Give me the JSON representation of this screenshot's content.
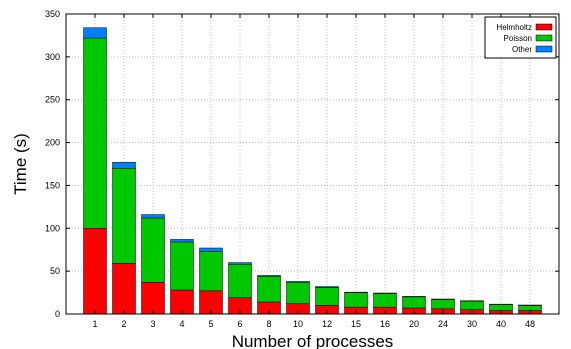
{
  "chart_data": {
    "type": "bar",
    "stacked": true,
    "xlabel": "Number of processes",
    "ylabel": "Time (s)",
    "ylim": [
      0,
      350
    ],
    "yticks": [
      0,
      50,
      100,
      150,
      200,
      250,
      300,
      350
    ],
    "grid": true,
    "legend_position": "top-right",
    "categories": [
      "1",
      "2",
      "3",
      "4",
      "5",
      "6",
      "8",
      "10",
      "12",
      "15",
      "16",
      "20",
      "24",
      "30",
      "40",
      "48"
    ],
    "series": [
      {
        "name": "Helmholtz",
        "color": "#ff0000",
        "values": [
          100,
          59,
          37,
          28,
          27,
          19,
          14,
          12,
          10,
          8,
          8,
          7,
          6,
          5,
          4,
          4
        ]
      },
      {
        "name": "Poisson",
        "color": "#00c800",
        "values": [
          222,
          111,
          75,
          56,
          46,
          39,
          30,
          25,
          21,
          17,
          16,
          13,
          11,
          10,
          7,
          6
        ]
      },
      {
        "name": "Other",
        "color": "#0080ff",
        "values": [
          12,
          7,
          4,
          3,
          4,
          2,
          1,
          1,
          1,
          0.5,
          0.5,
          0.5,
          0.5,
          0.5,
          0.5,
          0.5
        ]
      }
    ]
  }
}
